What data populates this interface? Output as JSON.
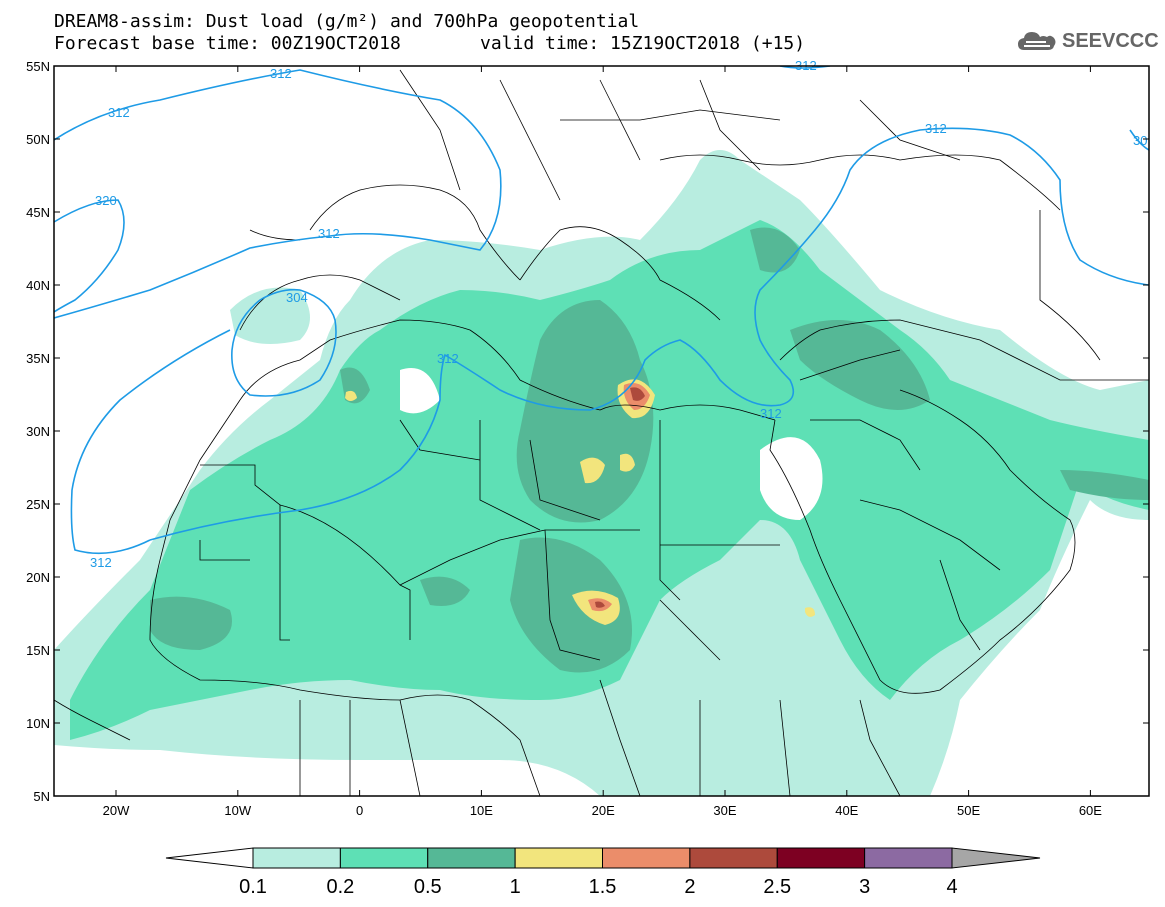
{
  "header": {
    "title_line1": "DREAM8-assim: Dust load (g/m²) and 700hPa geopotential",
    "title_line2": "Forecast base time: 00Z19OCT2018",
    "valid_time": "valid time: 15Z19OCT2018 (+15)",
    "logo_text": "SEEVCCC"
  },
  "map": {
    "lat_labels": [
      "55N",
      "50N",
      "45N",
      "40N",
      "35N",
      "30N",
      "25N",
      "20N",
      "15N",
      "10N",
      "5N"
    ],
    "lon_labels": [
      "20W",
      "10W",
      "0",
      "10E",
      "20E",
      "30E",
      "40E",
      "50E",
      "60E"
    ],
    "contour_labels": [
      "312",
      "312",
      "320",
      "312",
      "304",
      "312",
      "312",
      "312",
      "312",
      "312",
      "30"
    ],
    "colors": {
      "c01": "#b8ede0",
      "c02": "#5ee0b5",
      "c05": "#55b896",
      "c1": "#f2e57d",
      "c15": "#eb8d6a",
      "c2": "#ad4a3c",
      "c25": "#7d0022",
      "c3": "#8c6aa2",
      "c4": "#a6a6a6",
      "geopotential": "#1e9be6",
      "borders": "#000000"
    }
  },
  "colorbar": {
    "labels": [
      "0.1",
      "0.2",
      "0.5",
      "1",
      "1.5",
      "2",
      "2.5",
      "3",
      "4"
    ],
    "colors": [
      "#b8ede0",
      "#5ee0b5",
      "#55b896",
      "#f2e57d",
      "#eb8d6a",
      "#ad4a3c",
      "#7d0022",
      "#8c6aa2",
      "#a6a6a6"
    ]
  }
}
